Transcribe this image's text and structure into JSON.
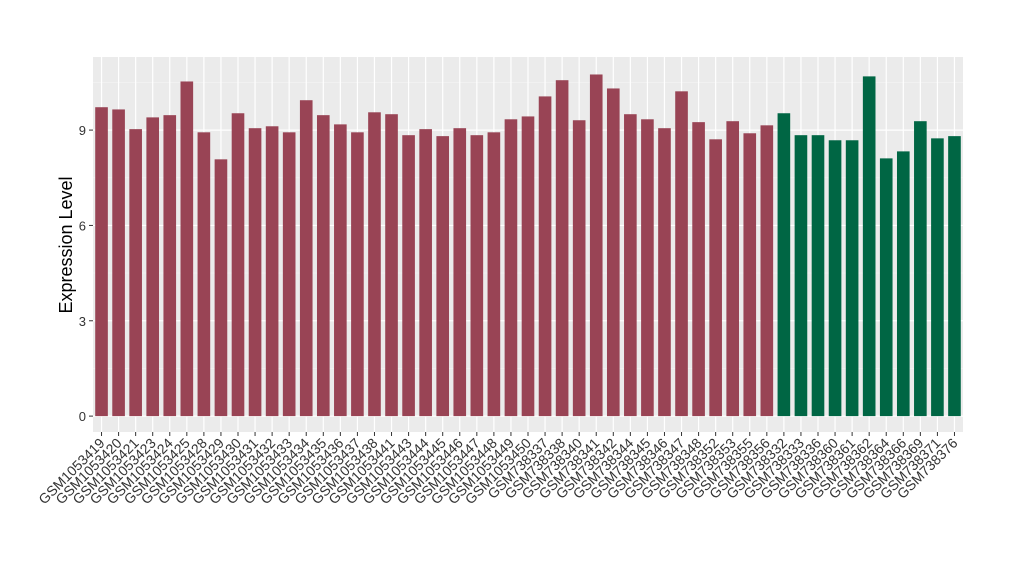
{
  "chart_data": {
    "type": "bar",
    "y_label": "Expression Level",
    "categories": [
      "GSM1053419",
      "GSM1053420",
      "GSM1053421",
      "GSM1053423",
      "GSM1053424",
      "GSM1053425",
      "GSM1053428",
      "GSM1053429",
      "GSM1053430",
      "GSM1053431",
      "GSM1053432",
      "GSM1053433",
      "GSM1053434",
      "GSM1053435",
      "GSM1053436",
      "GSM1053437",
      "GSM1053438",
      "GSM1053441",
      "GSM1053443",
      "GSM1053444",
      "GSM1053445",
      "GSM1053446",
      "GSM1053447",
      "GSM1053448",
      "GSM1053449",
      "GSM1053450",
      "GSM738337",
      "GSM738338",
      "GSM738340",
      "GSM738341",
      "GSM738342",
      "GSM738344",
      "GSM738345",
      "GSM738346",
      "GSM738347",
      "GSM738348",
      "GSM738352",
      "GSM738353",
      "GSM738355",
      "GSM738356",
      "GSM738332",
      "GSM738333",
      "GSM738336",
      "GSM738360",
      "GSM738361",
      "GSM738362",
      "GSM738364",
      "GSM738366",
      "GSM738369",
      "GSM738371",
      "GSM738376"
    ],
    "values": [
      9.72,
      9.65,
      9.03,
      9.4,
      9.47,
      10.53,
      8.93,
      8.08,
      9.53,
      9.06,
      9.12,
      8.93,
      9.94,
      9.47,
      9.18,
      8.93,
      9.56,
      9.5,
      8.84,
      9.03,
      8.81,
      9.06,
      8.84,
      8.93,
      9.34,
      9.43,
      10.06,
      10.57,
      9.31,
      10.75,
      10.31,
      9.5,
      9.34,
      9.06,
      10.22,
      9.25,
      8.71,
      9.28,
      8.9,
      9.15,
      9.53,
      8.84,
      8.84,
      8.68,
      8.68,
      10.69,
      8.11,
      8.33,
      9.28,
      8.74,
      8.81
    ],
    "colors": [
      "#994455",
      "#994455",
      "#994455",
      "#994455",
      "#994455",
      "#994455",
      "#994455",
      "#994455",
      "#994455",
      "#994455",
      "#994455",
      "#994455",
      "#994455",
      "#994455",
      "#994455",
      "#994455",
      "#994455",
      "#994455",
      "#994455",
      "#994455",
      "#994455",
      "#994455",
      "#994455",
      "#994455",
      "#994455",
      "#994455",
      "#994455",
      "#994455",
      "#994455",
      "#994455",
      "#994455",
      "#994455",
      "#994455",
      "#994455",
      "#994455",
      "#994455",
      "#994455",
      "#994455",
      "#994455",
      "#994455",
      "#006644",
      "#006644",
      "#006644",
      "#006644",
      "#006644",
      "#006644",
      "#006644",
      "#006644",
      "#006644",
      "#006644",
      "#006644"
    ],
    "ylim": [
      -0.5,
      11.3
    ],
    "yticks": [
      0,
      3,
      6,
      9
    ],
    "grid": true
  }
}
